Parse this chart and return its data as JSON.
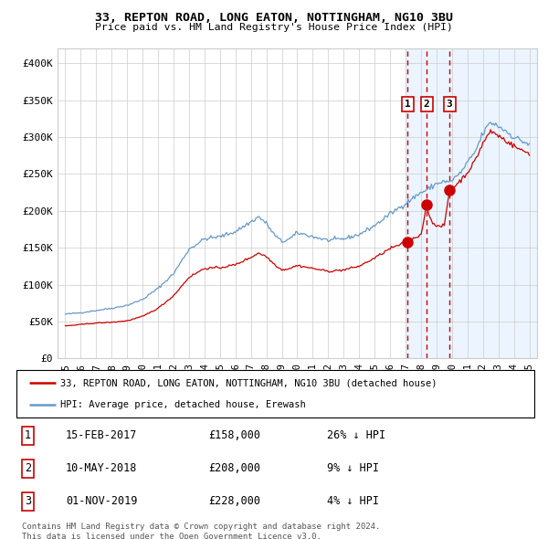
{
  "title": "33, REPTON ROAD, LONG EATON, NOTTINGHAM, NG10 3BU",
  "subtitle": "Price paid vs. HM Land Registry's House Price Index (HPI)",
  "legend_label_red": "33, REPTON ROAD, LONG EATON, NOTTINGHAM, NG10 3BU (detached house)",
  "legend_label_blue": "HPI: Average price, detached house, Erewash",
  "footer1": "Contains HM Land Registry data © Crown copyright and database right 2024.",
  "footer2": "This data is licensed under the Open Government Licence v3.0.",
  "transactions": [
    {
      "num": 1,
      "date": "15-FEB-2017",
      "price": 158000,
      "pct": "26% ↓ HPI"
    },
    {
      "num": 2,
      "date": "10-MAY-2018",
      "price": 208000,
      "pct": "9% ↓ HPI"
    },
    {
      "num": 3,
      "date": "01-NOV-2019",
      "price": 228000,
      "pct": "4% ↓ HPI"
    }
  ],
  "transaction_dates_decimal": [
    2017.12,
    2018.36,
    2019.84
  ],
  "transaction_prices": [
    158000,
    208000,
    228000
  ],
  "color_red": "#cc0000",
  "color_blue": "#6699cc",
  "color_bg_shade": "#ddeeff",
  "ylim": [
    0,
    420000
  ],
  "yticks": [
    0,
    50000,
    100000,
    150000,
    200000,
    250000,
    300000,
    350000,
    400000
  ],
  "ylabels": [
    "£0",
    "£50K",
    "£100K",
    "£150K",
    "£200K",
    "£250K",
    "£300K",
    "£350K",
    "£400K"
  ],
  "xlim_start": 1994.5,
  "xlim_end": 2025.5,
  "shade_start": 2017.0,
  "xticks": [
    1995,
    1996,
    1997,
    1998,
    1999,
    2000,
    2001,
    2002,
    2003,
    2004,
    2005,
    2006,
    2007,
    2008,
    2009,
    2010,
    2011,
    2012,
    2013,
    2014,
    2015,
    2016,
    2017,
    2018,
    2019,
    2020,
    2021,
    2022,
    2023,
    2024,
    2025
  ],
  "blue_targets_x": [
    1995.0,
    1996.0,
    1997.0,
    1998.0,
    1999.0,
    2000.0,
    2001.0,
    2002.0,
    2003.0,
    2004.0,
    2005.0,
    2006.0,
    2007.0,
    2007.5,
    2008.0,
    2008.5,
    2009.0,
    2009.5,
    2010.0,
    2010.5,
    2011.0,
    2012.0,
    2013.0,
    2014.0,
    2015.0,
    2016.0,
    2017.0,
    2017.12,
    2018.0,
    2018.36,
    2019.0,
    2019.5,
    2019.84,
    2020.0,
    2020.5,
    2021.0,
    2021.5,
    2022.0,
    2022.5,
    2023.0,
    2023.5,
    2024.0,
    2024.5,
    2025.0
  ],
  "blue_targets_y": [
    60000,
    62000,
    65000,
    68000,
    72000,
    80000,
    95000,
    115000,
    148000,
    162000,
    165000,
    172000,
    185000,
    192000,
    183000,
    168000,
    158000,
    162000,
    170000,
    168000,
    165000,
    160000,
    162000,
    168000,
    180000,
    196000,
    210000,
    212000,
    225000,
    228000,
    237000,
    240000,
    238000,
    242000,
    250000,
    265000,
    280000,
    305000,
    320000,
    315000,
    308000,
    300000,
    295000,
    290000
  ],
  "red_targets_x": [
    1995.0,
    1996.0,
    1997.0,
    1998.0,
    1999.0,
    2000.0,
    2001.0,
    2002.0,
    2003.0,
    2004.0,
    2005.0,
    2006.0,
    2007.0,
    2007.5,
    2008.0,
    2008.5,
    2009.0,
    2009.5,
    2010.0,
    2010.5,
    2011.0,
    2012.0,
    2013.0,
    2014.0,
    2015.0,
    2016.0,
    2017.0,
    2017.12,
    2018.0,
    2018.36,
    2018.6,
    2019.0,
    2019.5,
    2019.84,
    2020.0,
    2020.5,
    2021.0,
    2021.5,
    2022.0,
    2022.5,
    2023.0,
    2023.5,
    2024.0,
    2024.5,
    2025.0
  ],
  "red_targets_y": [
    44000,
    46000,
    48000,
    49000,
    51000,
    57000,
    68000,
    85000,
    110000,
    122000,
    123000,
    127000,
    137000,
    143000,
    138000,
    128000,
    120000,
    122000,
    126000,
    124000,
    122000,
    118000,
    120000,
    125000,
    136000,
    149000,
    157000,
    158000,
    168000,
    208000,
    190000,
    178000,
    180000,
    228000,
    230000,
    240000,
    252000,
    268000,
    292000,
    308000,
    302000,
    295000,
    288000,
    282000,
    278000
  ],
  "blue_noise_scale": 0.008,
  "red_noise_scale": 0.006,
  "random_seed": 42
}
